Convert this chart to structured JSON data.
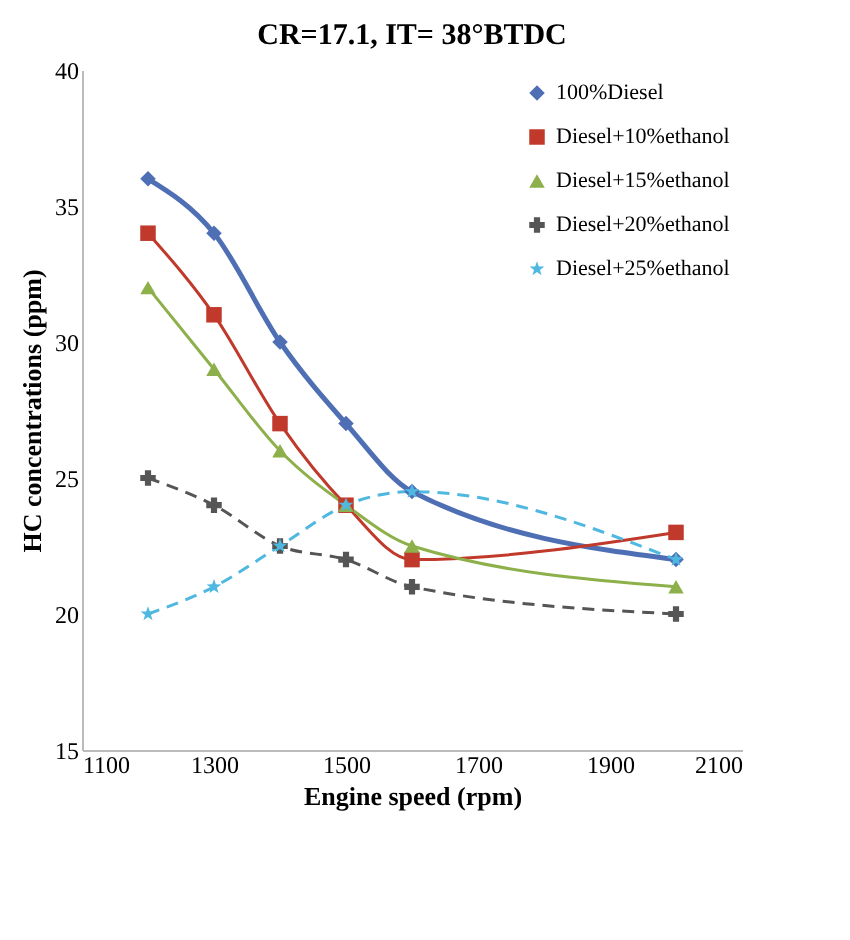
{
  "chart_data": {
    "type": "line",
    "title": "CR=17.1, IT= 38°BTDC",
    "xlabel": "Engine speed (rpm)",
    "ylabel": "HC concentrations (ppm)",
    "x": [
      1200,
      1300,
      1400,
      1500,
      1600,
      2000
    ],
    "series": [
      {
        "name": "100%Diesel",
        "color": "#4f6fb5",
        "values": [
          36,
          34,
          30,
          27,
          24.5,
          22
        ],
        "marker": "diamond",
        "line_style": "solid"
      },
      {
        "name": "Diesel+10%ethanol",
        "color": "#c0392b",
        "values": [
          34,
          31,
          27,
          24,
          22,
          23
        ],
        "marker": "square",
        "line_style": "solid"
      },
      {
        "name": "Diesel+15%ethanol",
        "color": "#8db04a",
        "values": [
          32,
          29,
          26,
          24,
          22.5,
          21
        ],
        "marker": "triangle",
        "line_style": "solid"
      },
      {
        "name": "Diesel+20%ethanol",
        "color": "#555555",
        "values": [
          25,
          24,
          22.5,
          22,
          21,
          20
        ],
        "marker": "cross",
        "line_style": "dashed"
      },
      {
        "name": "Diesel+25%ethanol",
        "color": "#4fb8e0",
        "values": [
          20,
          21,
          22.5,
          24,
          24.5,
          22
        ],
        "marker": "star",
        "line_style": "dashed"
      }
    ],
    "xlim": [
      1100,
      2100
    ],
    "xticks": [
      1100,
      1300,
      1500,
      1700,
      1900,
      2100
    ],
    "ylim": [
      15,
      40
    ],
    "yticks": [
      15,
      20,
      25,
      30,
      35,
      40
    ],
    "grid": false,
    "legend": "top right"
  }
}
